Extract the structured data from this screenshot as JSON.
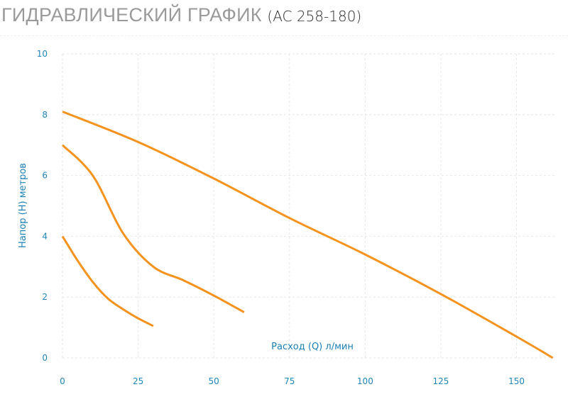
{
  "header": {
    "title": "ГИДРАВЛИЧЕСКИЙ ГРАФИК",
    "model": "(AC 258-180)"
  },
  "chart_data": {
    "type": "line",
    "title": "ГИДРАВЛИЧЕСКИЙ ГРАФИК (AC 258-180)",
    "xlabel": "Расход (Q) л/мин",
    "ylabel": "Напор (H) метров",
    "xlim": [
      0,
      163
    ],
    "ylim": [
      0,
      10
    ],
    "x_ticks": [
      0,
      25,
      50,
      75,
      100,
      125,
      150
    ],
    "y_ticks": [
      0,
      2,
      4,
      6,
      8,
      10
    ],
    "grid": true,
    "legend": "none",
    "line_color": "#f5931e",
    "grid_color": "#e6e6e6",
    "label_color": "#1f86b9",
    "series": [
      {
        "points": [
          [
            0,
            4.0
          ],
          [
            5,
            3.2
          ],
          [
            10,
            2.5
          ],
          [
            15,
            1.95
          ],
          [
            20,
            1.6
          ],
          [
            25,
            1.3
          ],
          [
            30,
            1.05
          ]
        ]
      },
      {
        "points": [
          [
            0,
            7.0
          ],
          [
            10,
            6.0
          ],
          [
            20,
            4.1
          ],
          [
            30,
            3.0
          ],
          [
            40,
            2.55
          ],
          [
            50,
            2.05
          ],
          [
            60,
            1.5
          ]
        ]
      },
      {
        "points": [
          [
            0,
            8.1
          ],
          [
            25,
            7.1
          ],
          [
            50,
            5.9
          ],
          [
            75,
            4.6
          ],
          [
            100,
            3.4
          ],
          [
            125,
            2.1
          ],
          [
            150,
            0.7
          ],
          [
            162,
            0.0
          ]
        ]
      }
    ]
  }
}
